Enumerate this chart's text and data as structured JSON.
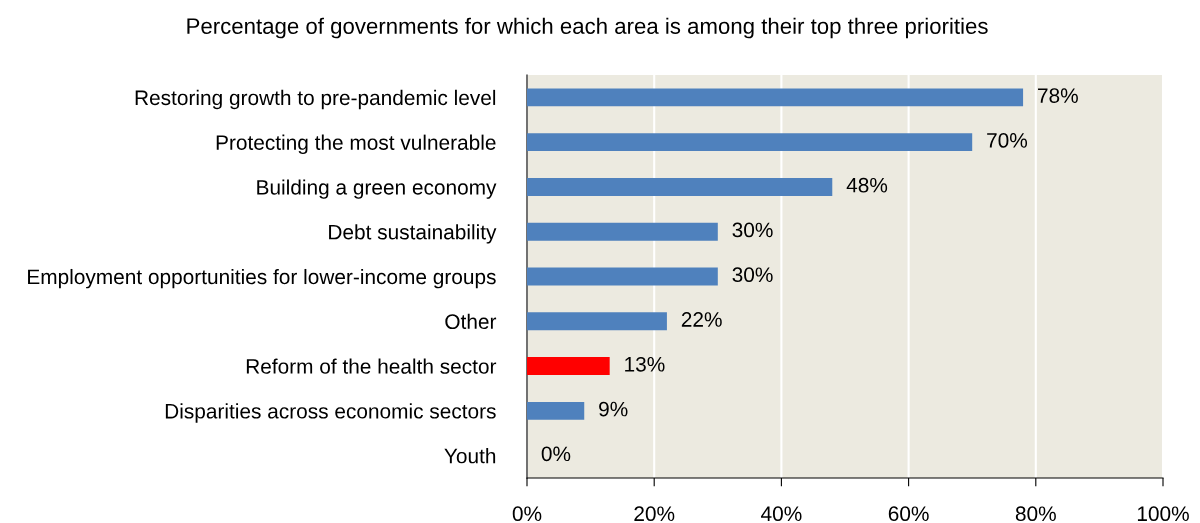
{
  "chart_data": {
    "type": "bar",
    "orientation": "horizontal",
    "title": "Percentage of governments for which each area is among their top three priorities",
    "categories": [
      "Restoring growth to pre-pandemic level",
      "Protecting the most vulnerable",
      "Building a green economy",
      "Debt sustainability",
      "Employment opportunities for lower-income groups",
      "Other",
      "Reform of the health sector",
      "Disparities across economic sectors",
      "Youth"
    ],
    "values": [
      78,
      70,
      48,
      30,
      30,
      22,
      13,
      9,
      0
    ],
    "value_labels": [
      "78%",
      "70%",
      "48%",
      "30%",
      "30%",
      "22%",
      "13%",
      "9%",
      "0%"
    ],
    "colors": [
      "#4f81bd",
      "#4f81bd",
      "#4f81bd",
      "#4f81bd",
      "#4f81bd",
      "#4f81bd",
      "#ff0000",
      "#4f81bd",
      "#4f81bd"
    ],
    "xlim": [
      0,
      100
    ],
    "xticks": [
      {
        "value": 0,
        "label": "0%"
      },
      {
        "value": 20,
        "label": "20%"
      },
      {
        "value": 40,
        "label": "40%"
      },
      {
        "value": 60,
        "label": "60%"
      },
      {
        "value": 80,
        "label": "80%"
      },
      {
        "value": 100,
        "label": "100%"
      }
    ],
    "grid": "x"
  }
}
